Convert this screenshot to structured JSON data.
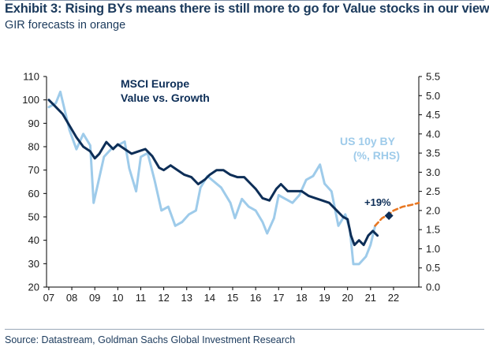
{
  "header": {
    "title": "Exhibit 3: Rising BYs means there is still more to go for Value stocks in our view",
    "subtitle": "GIR forecasts in orange"
  },
  "footer": {
    "source": "Source: Datastream, Goldman Sachs Global Investment Research"
  },
  "colors": {
    "value_vs_growth": "#0d2e57",
    "us10y": "#9ecbea",
    "forecast": "#e87722"
  },
  "chart_data": {
    "type": "line",
    "x_ticks": [
      "07",
      "08",
      "09",
      "10",
      "11",
      "12",
      "13",
      "14",
      "15",
      "16",
      "17",
      "18",
      "19",
      "20",
      "21",
      "22"
    ],
    "x_range": [
      2006.9,
      2023.1
    ],
    "y_left_range": [
      20,
      110
    ],
    "y_left_ticks": [
      "20",
      "30",
      "40",
      "50",
      "60",
      "70",
      "80",
      "90",
      "100",
      "110"
    ],
    "y_right_range": [
      0.0,
      5.5
    ],
    "y_right_ticks": [
      "0.0",
      "0.5",
      "1.0",
      "1.5",
      "2.0",
      "2.5",
      "3.0",
      "3.5",
      "4.0",
      "4.5",
      "5.0",
      "5.5"
    ],
    "annotation": "+19%",
    "series": [
      {
        "name": "MSCI Europe Value vs. Growth",
        "legend_lines": [
          "MSCI Europe",
          "Value vs. Growth"
        ],
        "axis": "left",
        "points": [
          [
            2007.0,
            100
          ],
          [
            2007.3,
            97
          ],
          [
            2007.6,
            94
          ],
          [
            2007.9,
            89
          ],
          [
            2008.2,
            84
          ],
          [
            2008.5,
            80
          ],
          [
            2008.8,
            78
          ],
          [
            2009.0,
            75
          ],
          [
            2009.2,
            77
          ],
          [
            2009.5,
            82
          ],
          [
            2009.8,
            79
          ],
          [
            2010.0,
            81
          ],
          [
            2010.3,
            79
          ],
          [
            2010.6,
            77
          ],
          [
            2010.9,
            78
          ],
          [
            2011.2,
            79
          ],
          [
            2011.5,
            76
          ],
          [
            2011.8,
            71
          ],
          [
            2012.0,
            70
          ],
          [
            2012.3,
            72
          ],
          [
            2012.6,
            70
          ],
          [
            2012.9,
            68
          ],
          [
            2013.2,
            67
          ],
          [
            2013.5,
            64
          ],
          [
            2013.8,
            66
          ],
          [
            2014.0,
            68
          ],
          [
            2014.3,
            70
          ],
          [
            2014.6,
            70
          ],
          [
            2014.9,
            68
          ],
          [
            2015.2,
            67
          ],
          [
            2015.5,
            67
          ],
          [
            2015.8,
            64
          ],
          [
            2016.0,
            62
          ],
          [
            2016.3,
            58
          ],
          [
            2016.6,
            57
          ],
          [
            2016.9,
            62
          ],
          [
            2017.1,
            64
          ],
          [
            2017.4,
            61
          ],
          [
            2017.7,
            61
          ],
          [
            2018.0,
            61
          ],
          [
            2018.3,
            59
          ],
          [
            2018.6,
            58
          ],
          [
            2018.9,
            57
          ],
          [
            2019.2,
            56
          ],
          [
            2019.5,
            53
          ],
          [
            2019.8,
            50
          ],
          [
            2020.0,
            49
          ],
          [
            2020.15,
            42
          ],
          [
            2020.3,
            38
          ],
          [
            2020.5,
            40
          ],
          [
            2020.7,
            38
          ],
          [
            2020.9,
            42
          ],
          [
            2021.1,
            44
          ],
          [
            2021.3,
            42
          ]
        ]
      },
      {
        "name": "US 10y BY (%, RHS)",
        "legend_lines": [
          "US 10y BY",
          "(%, RHS)"
        ],
        "axis": "right",
        "points": [
          [
            2007.0,
            4.7
          ],
          [
            2007.3,
            4.8
          ],
          [
            2007.5,
            5.1
          ],
          [
            2007.7,
            4.6
          ],
          [
            2007.9,
            4.1
          ],
          [
            2008.2,
            3.6
          ],
          [
            2008.5,
            4.0
          ],
          [
            2008.8,
            3.7
          ],
          [
            2008.95,
            2.2
          ],
          [
            2009.1,
            2.6
          ],
          [
            2009.4,
            3.4
          ],
          [
            2009.7,
            3.6
          ],
          [
            2010.0,
            3.7
          ],
          [
            2010.3,
            3.8
          ],
          [
            2010.5,
            3.1
          ],
          [
            2010.8,
            2.5
          ],
          [
            2011.0,
            3.4
          ],
          [
            2011.3,
            3.5
          ],
          [
            2011.6,
            2.8
          ],
          [
            2011.9,
            2.0
          ],
          [
            2012.2,
            2.1
          ],
          [
            2012.5,
            1.6
          ],
          [
            2012.8,
            1.7
          ],
          [
            2013.1,
            1.9
          ],
          [
            2013.4,
            2.0
          ],
          [
            2013.6,
            2.6
          ],
          [
            2013.9,
            2.9
          ],
          [
            2014.1,
            2.8
          ],
          [
            2014.5,
            2.6
          ],
          [
            2014.9,
            2.2
          ],
          [
            2015.1,
            1.8
          ],
          [
            2015.4,
            2.3
          ],
          [
            2015.7,
            2.1
          ],
          [
            2016.0,
            2.0
          ],
          [
            2016.3,
            1.7
          ],
          [
            2016.5,
            1.4
          ],
          [
            2016.8,
            1.8
          ],
          [
            2017.0,
            2.4
          ],
          [
            2017.3,
            2.3
          ],
          [
            2017.6,
            2.2
          ],
          [
            2017.9,
            2.4
          ],
          [
            2018.2,
            2.8
          ],
          [
            2018.5,
            2.9
          ],
          [
            2018.8,
            3.2
          ],
          [
            2019.0,
            2.7
          ],
          [
            2019.3,
            2.5
          ],
          [
            2019.6,
            1.6
          ],
          [
            2019.9,
            1.9
          ],
          [
            2020.1,
            1.5
          ],
          [
            2020.25,
            0.6
          ],
          [
            2020.5,
            0.6
          ],
          [
            2020.8,
            0.8
          ],
          [
            2021.0,
            1.1
          ],
          [
            2021.2,
            1.6
          ]
        ]
      },
      {
        "name": "GIR forecast",
        "axis": "right",
        "dashed": true,
        "points": [
          [
            2021.2,
            1.6
          ],
          [
            2021.5,
            1.8
          ],
          [
            2021.8,
            1.9
          ],
          [
            2022.0,
            2.0
          ],
          [
            2022.4,
            2.1
          ],
          [
            2022.8,
            2.15
          ],
          [
            2023.1,
            2.2
          ]
        ]
      },
      {
        "name": "GIR forecast Value vs. Growth",
        "axis": "left",
        "marker": "diamond",
        "points": [
          [
            2021.8,
            50.5
          ]
        ]
      }
    ]
  }
}
